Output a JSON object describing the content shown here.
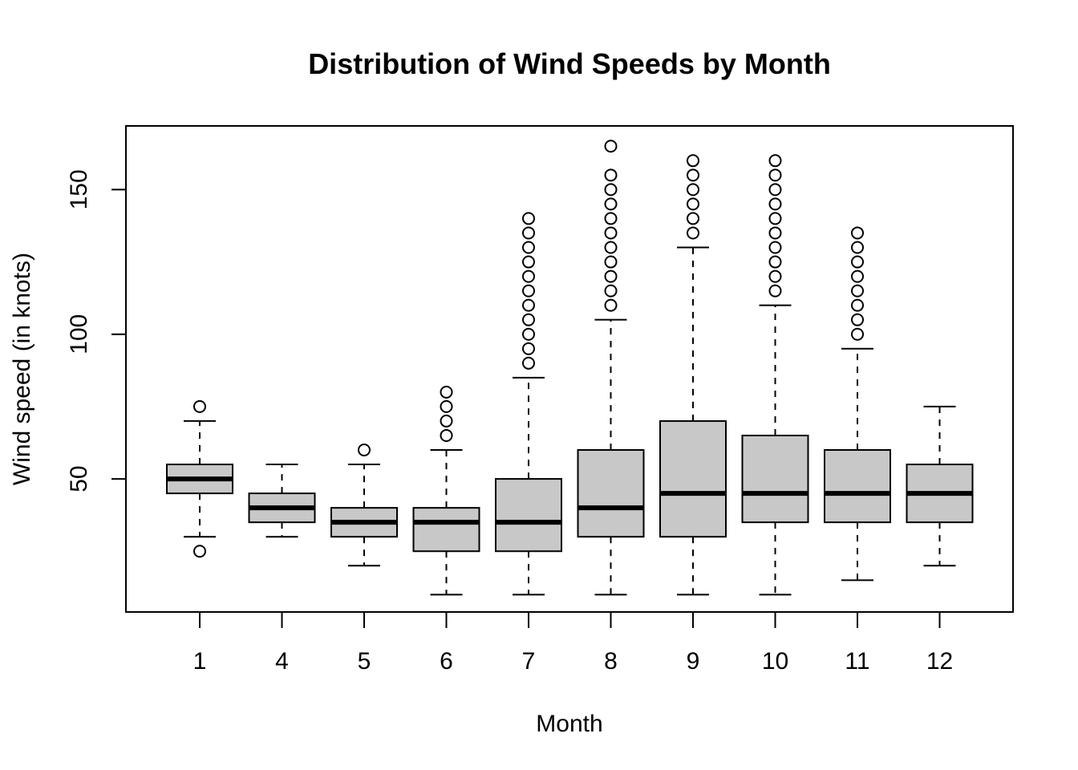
{
  "chart_data": {
    "type": "boxplot",
    "title": "Distribution of Wind Speeds by Month",
    "xlabel": "Month",
    "ylabel": "Wind speed (in knots)",
    "yticks": [
      50,
      100,
      150
    ],
    "ylim": [
      4,
      172
    ],
    "grid": false,
    "legend": "none",
    "colors": {
      "box_fill": "#c8c8c8",
      "stroke": "#000000",
      "background": "#ffffff"
    },
    "categories": [
      "1",
      "4",
      "5",
      "6",
      "7",
      "8",
      "9",
      "10",
      "11",
      "12"
    ],
    "boxes": [
      {
        "category": "1",
        "whisker_low": 30,
        "q1": 45,
        "median": 50,
        "q3": 55,
        "whisker_high": 70,
        "outliers": [
          25,
          75
        ]
      },
      {
        "category": "4",
        "whisker_low": 30,
        "q1": 35,
        "median": 40,
        "q3": 45,
        "whisker_high": 55,
        "outliers": []
      },
      {
        "category": "5",
        "whisker_low": 20,
        "q1": 30,
        "median": 35,
        "q3": 40,
        "whisker_high": 55,
        "outliers": [
          60
        ]
      },
      {
        "category": "6",
        "whisker_low": 10,
        "q1": 25,
        "median": 35,
        "q3": 40,
        "whisker_high": 60,
        "outliers": [
          65,
          70,
          75,
          80
        ]
      },
      {
        "category": "7",
        "whisker_low": 10,
        "q1": 25,
        "median": 35,
        "q3": 50,
        "whisker_high": 85,
        "outliers": [
          90,
          95,
          100,
          105,
          110,
          115,
          120,
          125,
          130,
          135,
          140
        ]
      },
      {
        "category": "8",
        "whisker_low": 10,
        "q1": 30,
        "median": 40,
        "q3": 60,
        "whisker_high": 105,
        "outliers": [
          110,
          115,
          120,
          125,
          130,
          135,
          140,
          145,
          150,
          155,
          165
        ]
      },
      {
        "category": "9",
        "whisker_low": 10,
        "q1": 30,
        "median": 45,
        "q3": 70,
        "whisker_high": 130,
        "outliers": [
          135,
          140,
          145,
          150,
          155,
          160
        ]
      },
      {
        "category": "10",
        "whisker_low": 10,
        "q1": 35,
        "median": 45,
        "q3": 65,
        "whisker_high": 110,
        "outliers": [
          115,
          120,
          125,
          130,
          135,
          140,
          145,
          150,
          155,
          160
        ]
      },
      {
        "category": "11",
        "whisker_low": 15,
        "q1": 35,
        "median": 45,
        "q3": 60,
        "whisker_high": 95,
        "outliers": [
          100,
          105,
          110,
          115,
          120,
          125,
          130,
          135
        ]
      },
      {
        "category": "12",
        "whisker_low": 20,
        "q1": 35,
        "median": 45,
        "q3": 55,
        "whisker_high": 75,
        "outliers": []
      }
    ]
  }
}
